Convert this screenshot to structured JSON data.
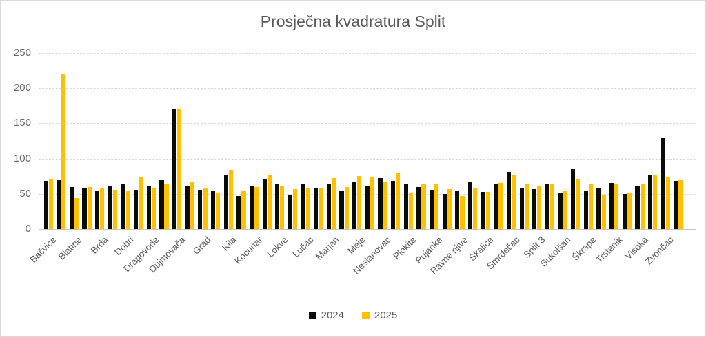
{
  "title": "Prosječna kvadratura Split",
  "colors": {
    "bar_2024": "#0b0b0b",
    "bar_2025": "#ffc000",
    "title_text": "#595959",
    "axis_text": "#6a6a6a",
    "gridline": "#dadada",
    "background": "#fefefe"
  },
  "legend": {
    "item_2024": "2024",
    "item_2025": "2025"
  },
  "chart_data": {
    "type": "bar",
    "title": "Prosječna kvadratura Split",
    "xlabel": "",
    "ylabel": "",
    "ylim": [
      0,
      250
    ],
    "yticks": [
      0,
      50,
      100,
      150,
      200,
      250
    ],
    "grid": true,
    "legend_position": "bottom",
    "x_labels_shown_every": 2,
    "categories": [
      "Bačvice",
      "",
      "Blatine",
      "",
      "Brda",
      "",
      "Dobri",
      "",
      "Dragovode",
      "",
      "Dujmovača",
      "",
      "Grad",
      "",
      "Kila",
      "",
      "Kocunar",
      "",
      "Lokve",
      "",
      "Lučac",
      "",
      "Marjan",
      "",
      "Meje",
      "",
      "Neslanovac",
      "",
      "Plokite",
      "",
      "Pujanke",
      "",
      "Ravne njive",
      "",
      "Skalice",
      "",
      "Smrdečac",
      "",
      "Split 3",
      "",
      "Sukoišan",
      "",
      "Škrape",
      "",
      "Trstenik",
      "",
      "Visoka",
      "",
      "Zvončac",
      ""
    ],
    "series": [
      {
        "name": "2024",
        "color": "#0b0b0b",
        "values": [
          68,
          69,
          60,
          59,
          55,
          62,
          64,
          56,
          62,
          69,
          170,
          61,
          56,
          54,
          77,
          47,
          62,
          71,
          64,
          49,
          63,
          59,
          64,
          55,
          67,
          61,
          72,
          68,
          63,
          60,
          56,
          50,
          54,
          66,
          53,
          64,
          81,
          59,
          57,
          63,
          52,
          85,
          54,
          58,
          65,
          50,
          61,
          76,
          130,
          68
        ]
      },
      {
        "name": "2025",
        "color": "#ffc000",
        "values": [
          71,
          220,
          44,
          60,
          58,
          56,
          54,
          74,
          59,
          63,
          170,
          67,
          59,
          52,
          84,
          54,
          60,
          77,
          61,
          57,
          59,
          59,
          72,
          60,
          75,
          73,
          66,
          79,
          52,
          63,
          64,
          57,
          47,
          58,
          53,
          65,
          77,
          64,
          61,
          64,
          55,
          71,
          63,
          48,
          64,
          52,
          64,
          77,
          74,
          69
        ]
      }
    ]
  }
}
